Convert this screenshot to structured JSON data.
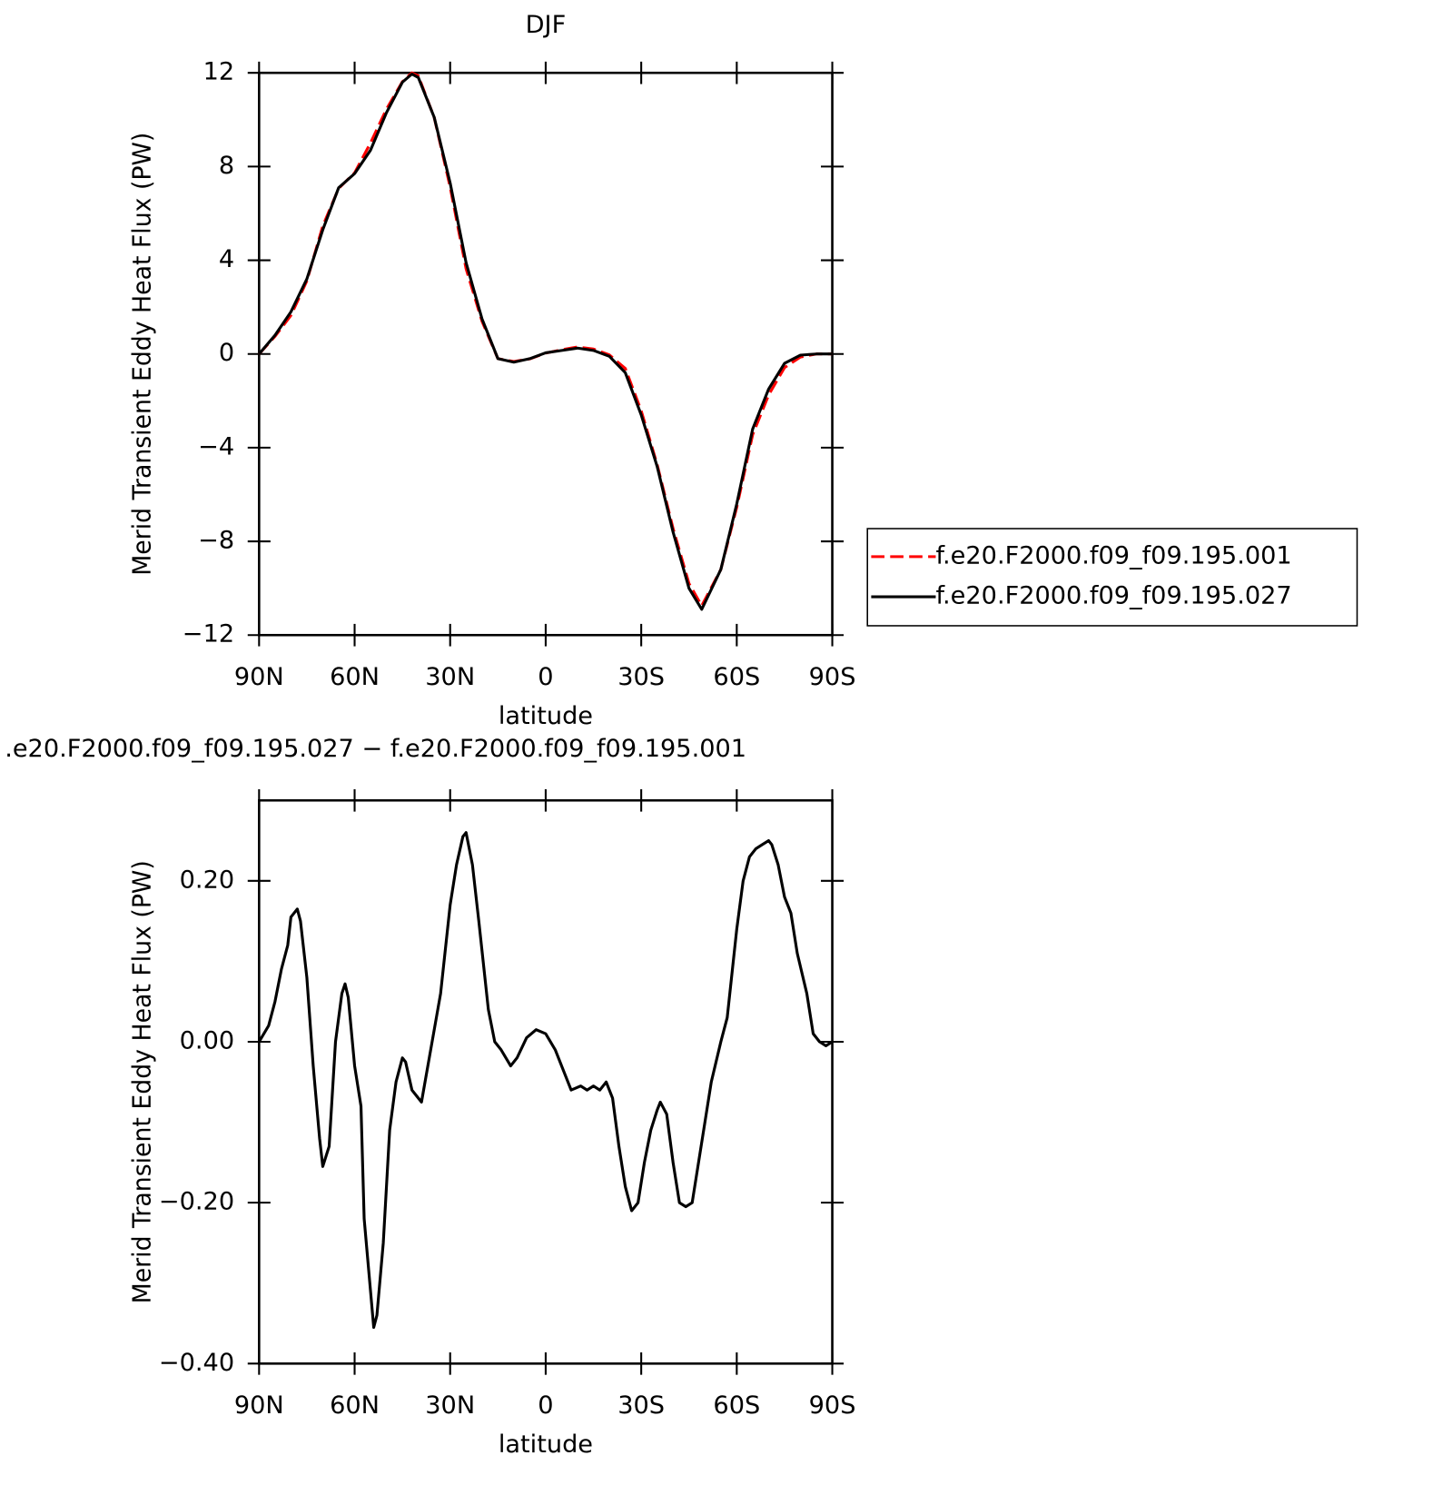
{
  "chart_data": [
    {
      "type": "line",
      "title": "DJF",
      "xlabel": "latitude",
      "ylabel": "Merid Transient Eddy Heat Flux (PW)",
      "x": [
        90,
        85,
        80,
        75,
        70,
        65,
        60,
        55,
        50,
        45,
        42,
        40,
        35,
        30,
        25,
        20,
        15,
        10,
        5,
        0,
        -5,
        -10,
        -15,
        -20,
        -25,
        -30,
        -35,
        -40,
        -45,
        -49,
        -55,
        -60,
        -65,
        -70,
        -75,
        -80,
        -85,
        -90
      ],
      "series": [
        {
          "name": "f.e20.F2000.f09_f09.195.001",
          "color": "#ff0000",
          "style": "dashed",
          "values": [
            0,
            0.75,
            1.65,
            3.12,
            5.46,
            7.07,
            7.73,
            9.01,
            10.45,
            11.62,
            12.0,
            11.87,
            10.09,
            7.13,
            3.64,
            1.4,
            -0.2,
            -0.32,
            -0.21,
            0.04,
            0.18,
            0.3,
            0.21,
            -0.04,
            -0.62,
            -2.43,
            -4.72,
            -7.45,
            -9.8,
            -10.75,
            -9.2,
            -6.54,
            -3.44,
            -1.75,
            -0.58,
            -0.13,
            0,
            0
          ]
        },
        {
          "name": "f.e20.F2000.f09_f09.195.027",
          "color": "#000000",
          "style": "solid",
          "values": [
            0,
            0.8,
            1.8,
            3.2,
            5.3,
            7.1,
            7.7,
            8.7,
            10.3,
            11.6,
            11.95,
            11.8,
            10.1,
            7.3,
            3.9,
            1.5,
            -0.2,
            -0.35,
            -0.2,
            0.05,
            0.15,
            0.25,
            0.15,
            -0.1,
            -0.8,
            -2.6,
            -4.8,
            -7.6,
            -10.0,
            -10.9,
            -9.2,
            -6.4,
            -3.2,
            -1.5,
            -0.4,
            -0.05,
            0,
            0
          ]
        }
      ],
      "xlim": [
        90,
        -90
      ],
      "xticks": [
        {
          "value": 90,
          "label": "90N"
        },
        {
          "value": 60,
          "label": "60N"
        },
        {
          "value": 30,
          "label": "30N"
        },
        0,
        {
          "value": -30,
          "label": "30S"
        },
        {
          "value": -60,
          "label": "60S"
        },
        {
          "value": -90,
          "label": "90S"
        }
      ],
      "ylim": [
        -12,
        12
      ],
      "yticks": [
        {
          "value": -12,
          "label": "−12"
        },
        {
          "value": -8,
          "label": "−8"
        },
        {
          "value": -4,
          "label": "−4"
        },
        0,
        4,
        8,
        12
      ],
      "legend": "right"
    },
    {
      "type": "line",
      "title": ".e20.F2000.f09_f09.195.027 − f.e20.F2000.f09_f09.195.001",
      "xlabel": "latitude",
      "ylabel": "Merid Transient Eddy Heat Flux (PW)",
      "x": [
        90,
        87,
        85,
        83,
        81,
        80,
        78,
        77,
        75,
        73,
        71,
        70,
        68,
        66,
        64,
        63,
        62,
        60,
        58,
        57,
        55,
        54,
        53,
        51,
        49,
        47,
        45,
        44,
        42,
        40,
        39,
        37,
        35,
        33,
        30,
        28,
        26,
        25,
        23,
        21,
        18,
        16,
        14,
        11,
        9,
        6,
        3,
        0,
        -3,
        -6,
        -8,
        -11,
        -13,
        -15,
        -17,
        -19,
        -21,
        -23,
        -25,
        -27,
        -29,
        -31,
        -33,
        -35,
        -36,
        -38,
        -40,
        -42,
        -44,
        -46,
        -48,
        -50,
        -52,
        -55,
        -57,
        -60,
        -62,
        -64,
        -66,
        -68,
        -70,
        -71,
        -73,
        -75,
        -77,
        -79,
        -82,
        -84,
        -86,
        -88,
        -90
      ],
      "series": [
        {
          "color": "#000000",
          "style": "solid",
          "values": [
            0,
            0.02,
            0.05,
            0.09,
            0.12,
            0.155,
            0.165,
            0.15,
            0.08,
            -0.03,
            -0.12,
            -0.155,
            -0.13,
            0.0,
            0.06,
            0.072,
            0.055,
            -0.03,
            -0.08,
            -0.22,
            -0.31,
            -0.355,
            -0.34,
            -0.25,
            -0.11,
            -0.05,
            -0.02,
            -0.025,
            -0.06,
            -0.07,
            -0.075,
            -0.03,
            0.015,
            0.06,
            0.17,
            0.22,
            0.255,
            0.26,
            0.22,
            0.15,
            0.04,
            0.0,
            -0.01,
            -0.03,
            -0.02,
            0.005,
            0.015,
            0.01,
            -0.01,
            -0.04,
            -0.06,
            -0.055,
            -0.06,
            -0.055,
            -0.06,
            -0.05,
            -0.07,
            -0.13,
            -0.18,
            -0.21,
            -0.2,
            -0.15,
            -0.11,
            -0.085,
            -0.075,
            -0.09,
            -0.15,
            -0.2,
            -0.205,
            -0.2,
            -0.15,
            -0.1,
            -0.05,
            0.0,
            0.03,
            0.14,
            0.2,
            0.23,
            0.24,
            0.245,
            0.25,
            0.245,
            0.22,
            0.18,
            0.16,
            0.11,
            0.06,
            0.01,
            0.0,
            -0.005,
            0.0
          ]
        }
      ],
      "xlim": [
        90,
        -90
      ],
      "xticks": [
        {
          "value": 90,
          "label": "90N"
        },
        {
          "value": 60,
          "label": "60N"
        },
        {
          "value": 30,
          "label": "30N"
        },
        0,
        {
          "value": -30,
          "label": "30S"
        },
        {
          "value": -60,
          "label": "60S"
        },
        {
          "value": -90,
          "label": "90S"
        }
      ],
      "ylim": [
        -0.4,
        0.3
      ],
      "yticks": [
        {
          "value": -0.4,
          "label": "−0.40"
        },
        {
          "value": -0.2,
          "label": "−0.20"
        },
        {
          "value": 0,
          "label": "0.00"
        },
        {
          "value": 0.2,
          "label": "0.20"
        }
      ]
    }
  ]
}
